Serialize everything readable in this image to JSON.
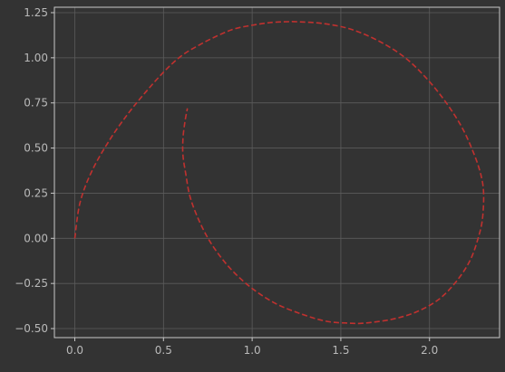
{
  "chart_data": {
    "type": "line",
    "title": "",
    "xlabel": "",
    "ylabel": "",
    "xlim": [
      -0.115,
      2.395
    ],
    "ylim": [
      -0.55,
      1.28
    ],
    "grid": true,
    "x_ticks": [
      0.0,
      0.5,
      1.0,
      1.5,
      2.0
    ],
    "x_tick_labels": [
      "0.0",
      "0.5",
      "1.0",
      "1.5",
      "2.0"
    ],
    "y_ticks": [
      -0.5,
      -0.25,
      0.0,
      0.25,
      0.5,
      0.75,
      1.0,
      1.25
    ],
    "y_tick_labels": [
      "−0.50",
      "−0.25",
      "0.00",
      "0.25",
      "0.50",
      "0.75",
      "1.00",
      "1.25"
    ],
    "series": [
      {
        "color": "#c0312f",
        "linestyle": "dashed",
        "x": [
          0.0,
          0.03,
          0.1,
          0.2,
          0.3,
          0.4,
          0.5,
          0.6,
          0.7,
          0.8,
          0.9,
          1.0,
          1.1,
          1.2,
          1.25,
          1.4,
          1.55,
          1.7,
          1.85,
          1.97,
          2.08,
          2.18,
          2.25,
          2.29,
          2.305,
          2.3,
          2.28,
          2.23,
          2.15,
          2.05,
          1.92,
          1.78,
          1.63,
          1.55,
          1.42,
          1.28,
          1.13,
          0.99,
          0.87,
          0.77,
          0.7,
          0.65,
          0.625,
          0.61,
          0.61,
          0.62,
          0.635
        ],
        "y": [
          0.0,
          0.2,
          0.38,
          0.55,
          0.69,
          0.81,
          0.92,
          1.01,
          1.07,
          1.12,
          1.16,
          1.18,
          1.195,
          1.2,
          1.2,
          1.19,
          1.16,
          1.1,
          1.01,
          0.9,
          0.77,
          0.62,
          0.47,
          0.35,
          0.25,
          0.12,
          0.02,
          -0.12,
          -0.24,
          -0.34,
          -0.41,
          -0.45,
          -0.47,
          -0.47,
          -0.46,
          -0.42,
          -0.36,
          -0.27,
          -0.16,
          -0.03,
          0.1,
          0.23,
          0.36,
          0.46,
          0.55,
          0.64,
          0.72
        ]
      }
    ]
  }
}
